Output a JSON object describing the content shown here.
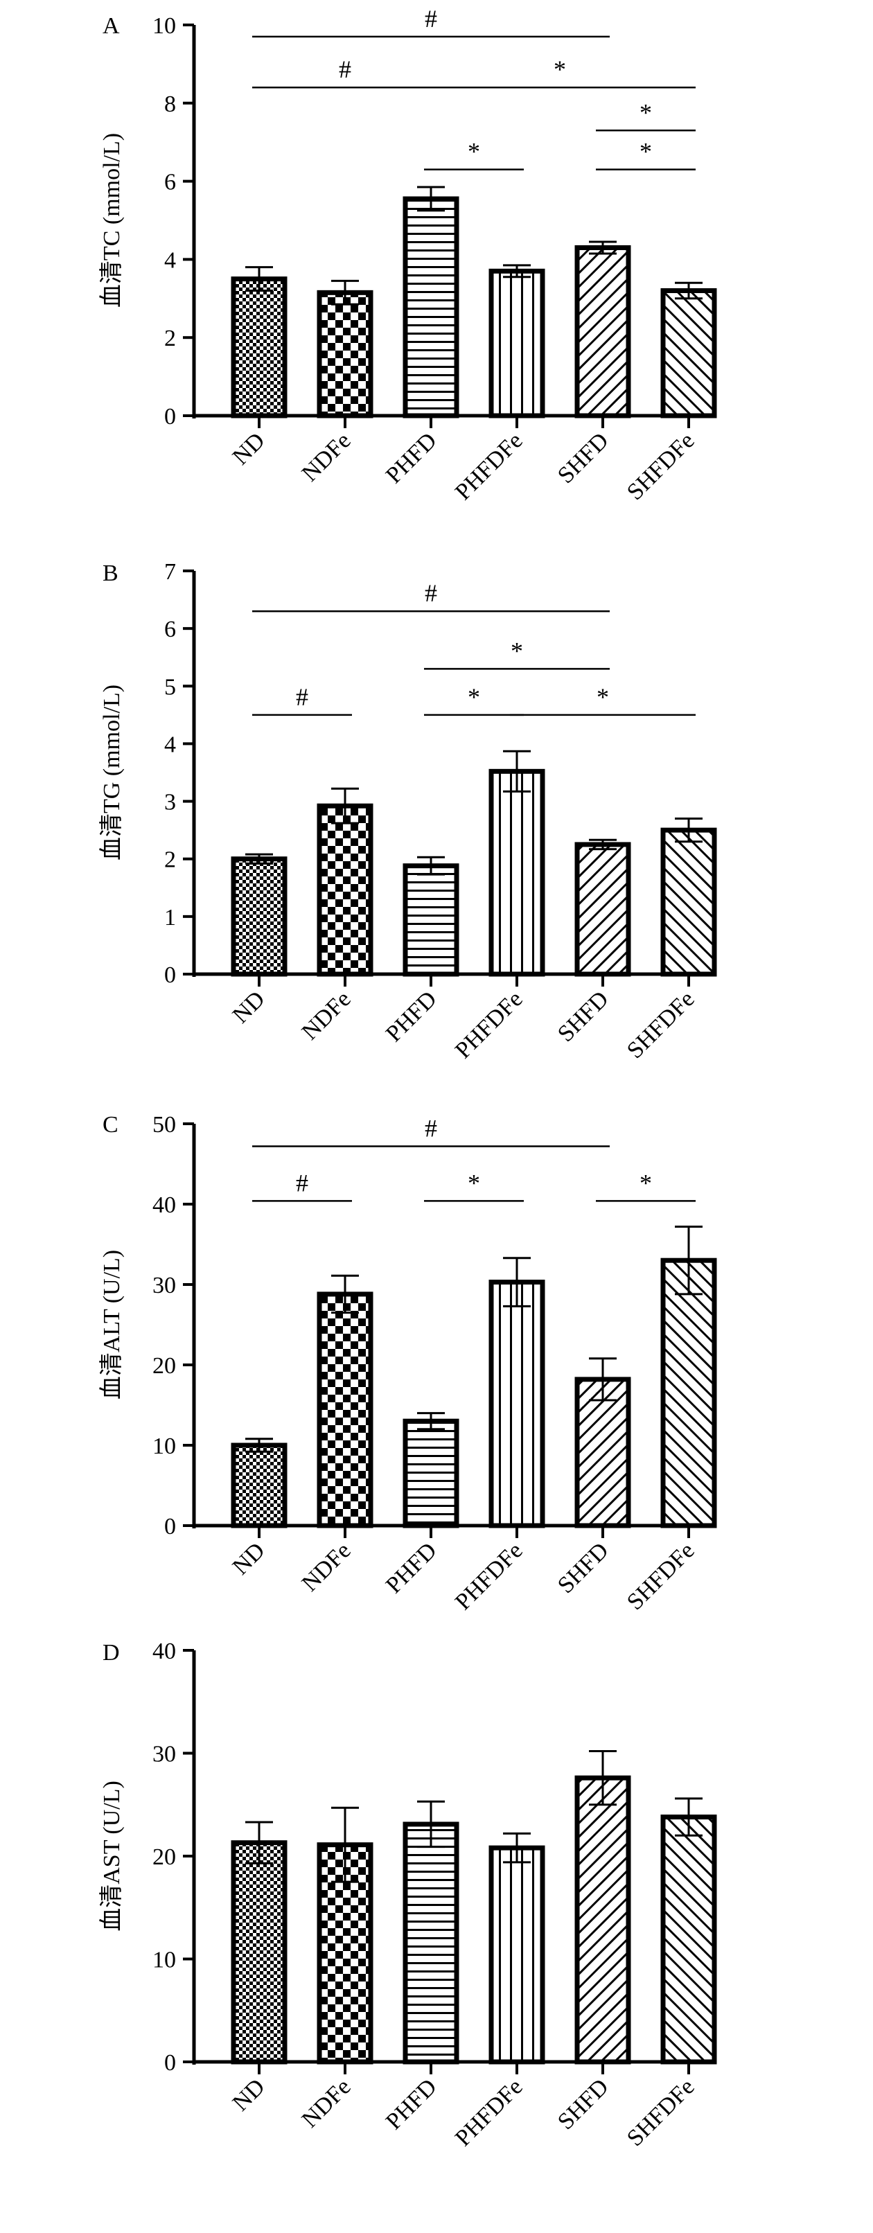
{
  "chart_data": [
    {
      "type": "bar",
      "panel": "A",
      "ylabel": "血清TC (mmol/L)",
      "ylim": [
        0,
        10
      ],
      "yticks": [
        0,
        2,
        4,
        6,
        8,
        10
      ],
      "categories": [
        "ND",
        "NDFe",
        "PHFD",
        "PHFDFe",
        "SHFD",
        "SHFDFe"
      ],
      "values": [
        3.5,
        3.15,
        5.55,
        3.7,
        4.3,
        3.2
      ],
      "errors": [
        0.3,
        0.3,
        0.3,
        0.15,
        0.15,
        0.2
      ],
      "significance": [
        {
          "from": "ND",
          "to": "SHFD",
          "mark": "#",
          "y": 9.7
        },
        {
          "from": "ND",
          "to": "PHFD",
          "mark": "#",
          "y": 8.4
        },
        {
          "from": "PHFD",
          "to": "SHFDFe",
          "mark": "*",
          "y": 8.4
        },
        {
          "from": "SHFD",
          "to": "SHFDFe",
          "mark": "*",
          "y": 7.3
        },
        {
          "from": "PHFD",
          "to": "PHFDFe",
          "mark": "*",
          "y": 6.3
        },
        {
          "from": "SHFD",
          "to": "SHFDFe",
          "mark": "*",
          "y": 6.3
        }
      ]
    },
    {
      "type": "bar",
      "panel": "B",
      "ylabel": "血清TG (mmol/L)",
      "ylim": [
        0,
        7
      ],
      "yticks": [
        0,
        1,
        2,
        3,
        4,
        5,
        6,
        7
      ],
      "categories": [
        "ND",
        "NDFe",
        "PHFD",
        "PHFDFe",
        "SHFD",
        "SHFDFe"
      ],
      "values": [
        2.0,
        2.92,
        1.88,
        3.52,
        2.25,
        2.5
      ],
      "errors": [
        0.08,
        0.3,
        0.15,
        0.35,
        0.08,
        0.2
      ],
      "significance": [
        {
          "from": "ND",
          "to": "SHFD",
          "mark": "#",
          "y": 6.3
        },
        {
          "from": "PHFD",
          "to": "SHFD",
          "mark": "*",
          "y": 5.3
        },
        {
          "from": "ND",
          "to": "NDFe",
          "mark": "#",
          "y": 4.5
        },
        {
          "from": "PHFD",
          "to": "PHFDFe",
          "mark": "*",
          "y": 4.5
        },
        {
          "from": "PHFDFe",
          "to": "SHFDFe",
          "mark": "*",
          "y": 4.5
        }
      ]
    },
    {
      "type": "bar",
      "panel": "C",
      "ylabel": "血清ALT (U/L)",
      "ylim": [
        0,
        50
      ],
      "yticks": [
        0,
        10,
        20,
        30,
        40,
        50
      ],
      "categories": [
        "ND",
        "NDFe",
        "PHFD",
        "PHFDFe",
        "SHFD",
        "SHFDFe"
      ],
      "values": [
        10,
        28.8,
        13,
        30.3,
        18.2,
        33
      ],
      "errors": [
        0.8,
        2.3,
        1.0,
        3.0,
        2.6,
        4.2
      ],
      "significance": [
        {
          "from": "ND",
          "to": "SHFD",
          "mark": "#",
          "y": 47.2
        },
        {
          "from": "ND",
          "to": "NDFe",
          "mark": "#",
          "y": 40.4
        },
        {
          "from": "PHFD",
          "to": "PHFDFe",
          "mark": "*",
          "y": 40.4
        },
        {
          "from": "SHFD",
          "to": "SHFDFe",
          "mark": "*",
          "y": 40.4
        }
      ]
    },
    {
      "type": "bar",
      "panel": "D",
      "ylabel": "血清AST (U/L)",
      "ylim": [
        0,
        40
      ],
      "yticks": [
        0,
        10,
        20,
        30,
        40
      ],
      "categories": [
        "ND",
        "NDFe",
        "PHFD",
        "PHFDFe",
        "SHFD",
        "SHFDFe"
      ],
      "values": [
        21.3,
        21.1,
        23.1,
        20.8,
        27.6,
        23.8
      ],
      "errors": [
        2.0,
        3.6,
        2.2,
        1.4,
        2.6,
        1.8
      ],
      "significance": []
    }
  ]
}
